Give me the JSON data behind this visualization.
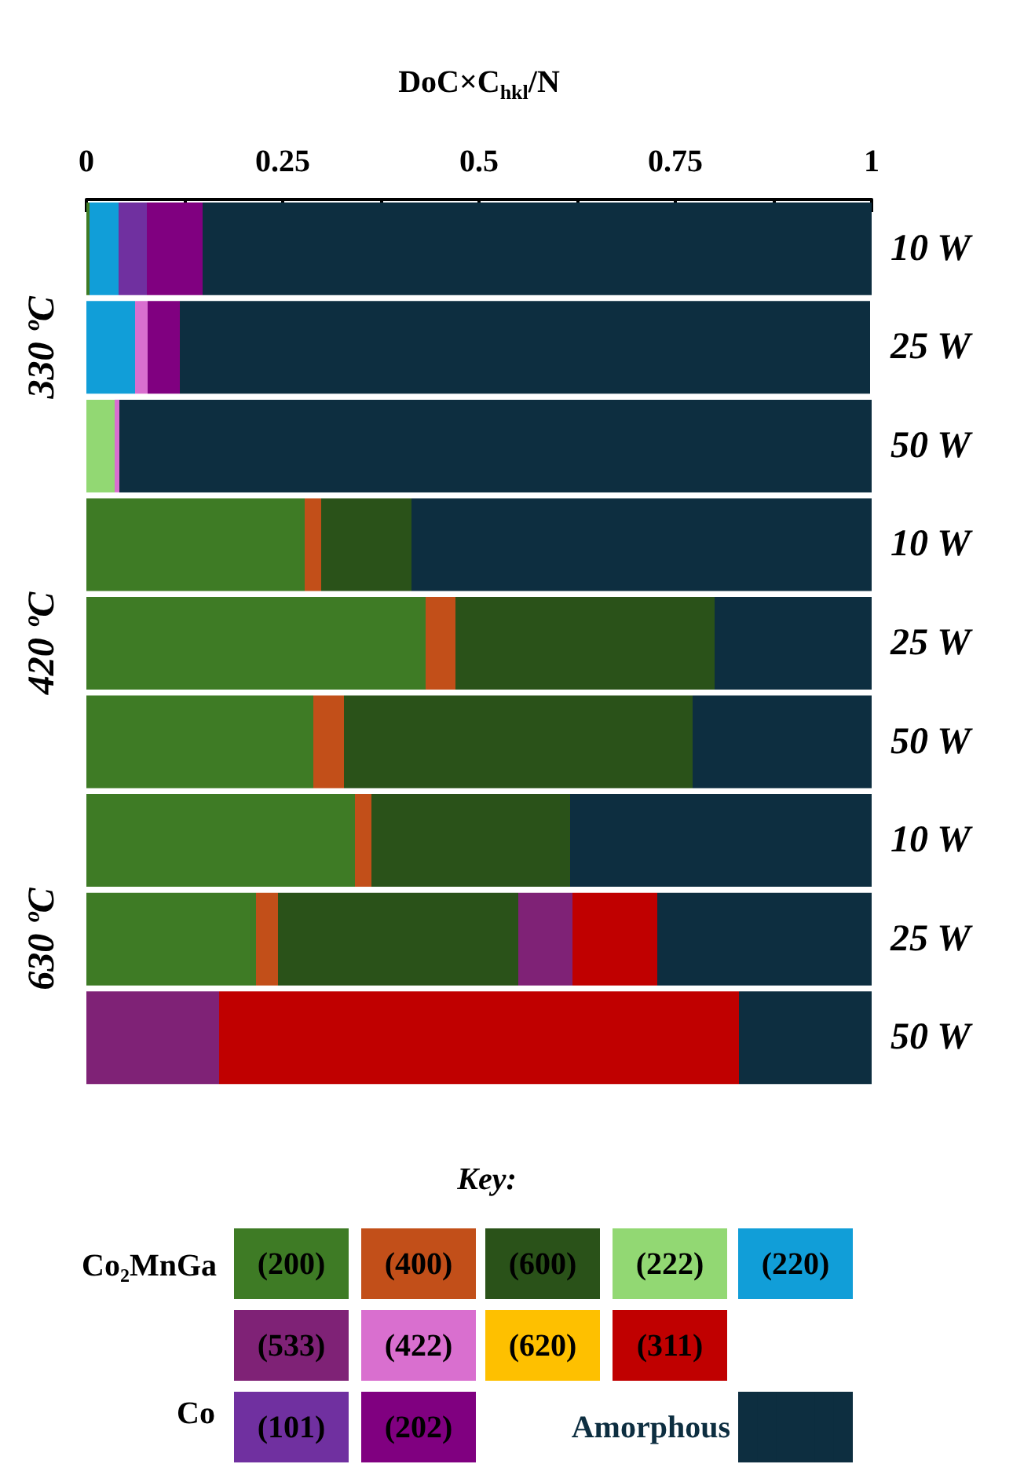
{
  "chart_data": {
    "type": "bar",
    "orientation": "horizontal",
    "stacked": true,
    "xlabel": "DoC×C$_{hkl}$/N",
    "legend_title": "Key:",
    "legend": "bottom",
    "categories": [
      "10 W",
      "25 W",
      "50 W",
      "10 W",
      "25 W",
      "50 W",
      "10 W",
      "25 W",
      "50 W"
    ],
    "annotations": [
      "330 ºC",
      "420 ºC",
      "630 ºC",
      "Co₂MnGa",
      "Co"
    ],
    "xlim": [
      0,
      1
    ],
    "xticks": [
      0,
      {
        "value": 0.125,
        "label": null
      },
      0.25,
      {
        "value": 0.375,
        "label": null
      },
      0.5,
      {
        "value": 0.625,
        "label": null
      },
      0.75,
      {
        "value": 0.875,
        "label": null
      },
      1
    ],
    "series": [
      {
        "name": "(200)",
        "color": "#3e7b25",
        "values": [
          0.004,
          null,
          null,
          0.278,
          0.432,
          0.289,
          0.342,
          0.216,
          null
        ]
      },
      {
        "name": "(400)",
        "color": "#c24f19",
        "values": [
          null,
          null,
          null,
          0.021,
          0.038,
          0.039,
          0.021,
          0.028,
          null
        ]
      },
      {
        "name": "(600)",
        "color": "#2a5219",
        "values": [
          null,
          null,
          null,
          0.115,
          0.33,
          0.444,
          0.253,
          0.306,
          null
        ]
      },
      {
        "name": "(222)",
        "color": "#92d873",
        "values": [
          null,
          null,
          0.036,
          null,
          null,
          null,
          null,
          null,
          null
        ]
      },
      {
        "name": "(220)",
        "color": "#119ed8",
        "values": [
          0.037,
          0.062,
          null,
          null,
          null,
          null,
          null,
          null,
          null
        ]
      },
      {
        "name": "(533)",
        "color": "#7f2276",
        "values": [
          null,
          null,
          null,
          null,
          null,
          null,
          null,
          0.069,
          0.169
        ]
      },
      {
        "name": "(422)",
        "color": "#d96fcf",
        "values": [
          null,
          0.016,
          0.006,
          null,
          null,
          null,
          null,
          null,
          null
        ]
      },
      {
        "name": "(620)",
        "color": "#fec000",
        "values": [
          null,
          null,
          null,
          null,
          null,
          null,
          null,
          null,
          null
        ]
      },
      {
        "name": "(311)",
        "color": "#c00000",
        "values": [
          null,
          null,
          null,
          null,
          null,
          null,
          null,
          0.108,
          0.662
        ]
      },
      {
        "name": "(101)",
        "color": "#7030a0",
        "values": [
          0.036,
          null,
          null,
          null,
          null,
          null,
          null,
          null,
          null
        ]
      },
      {
        "name": "(202)",
        "color": "#800080",
        "values": [
          0.071,
          0.041,
          null,
          null,
          null,
          null,
          null,
          null,
          null
        ]
      },
      {
        "name": "Amorphous",
        "color": "#0d2e40",
        "values": [
          0.852,
          0.879,
          0.958,
          0.586,
          0.2,
          0.228,
          0.384,
          0.273,
          0.169
        ]
      }
    ]
  }
}
